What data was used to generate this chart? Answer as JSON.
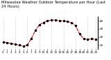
{
  "title": "Milwaukee Weather Outdoor Temperature per Hour (Last 24 Hours)",
  "hours": [
    0,
    1,
    2,
    3,
    4,
    5,
    6,
    7,
    8,
    9,
    10,
    11,
    12,
    13,
    14,
    15,
    16,
    17,
    18,
    19,
    20,
    21,
    22,
    23
  ],
  "temps": [
    14,
    13,
    12,
    11,
    10,
    9,
    10,
    18,
    28,
    35,
    38,
    40,
    41,
    41,
    40,
    40,
    39,
    38,
    34,
    24,
    18,
    17,
    18,
    17
  ],
  "line_color": "#cc0000",
  "marker_color": "#000000",
  "bg_color": "#ffffff",
  "grid_color": "#999999",
  "ylim": [
    5,
    45
  ],
  "yticks": [
    10,
    20,
    30,
    40
  ],
  "ytick_labels": [
    "10",
    "20",
    "30",
    "40"
  ],
  "title_fontsize": 3.8,
  "tick_fontsize": 3.0,
  "line_width": 0.8,
  "marker_size": 1.5,
  "grid_intervals": [
    0,
    3,
    6,
    9,
    12,
    15,
    18,
    21,
    23
  ]
}
